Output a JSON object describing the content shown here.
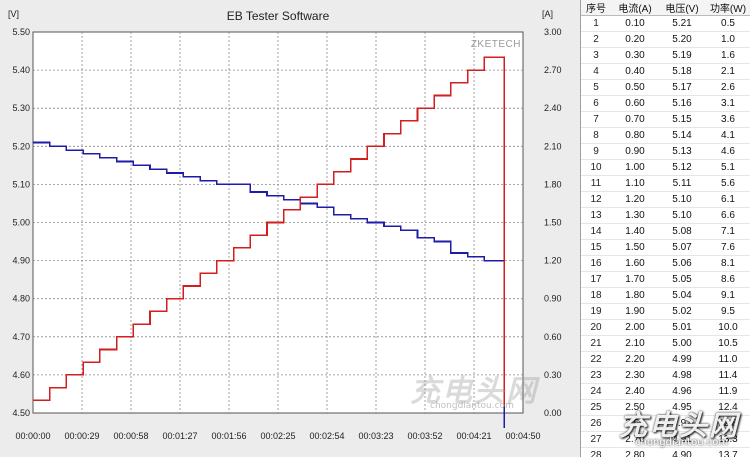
{
  "chart_data": {
    "type": "line",
    "title": "EB Tester Software",
    "left_unit": "[V]",
    "right_unit": "[A]",
    "watermark": "ZKETECH",
    "left_ticks": [
      "5.50",
      "5.40",
      "5.30",
      "5.20",
      "5.10",
      "5.00",
      "4.90",
      "4.80",
      "4.70",
      "4.60",
      "4.50"
    ],
    "right_ticks": [
      "3.00",
      "2.70",
      "2.40",
      "2.10",
      "1.80",
      "1.50",
      "1.20",
      "0.90",
      "0.60",
      "0.30",
      "0.00"
    ],
    "x_ticks": [
      "00:00:00",
      "00:00:29",
      "00:00:58",
      "00:01:27",
      "00:01:56",
      "00:02:25",
      "00:02:54",
      "00:03:23",
      "00:03:52",
      "00:04:21",
      "00:04:50"
    ],
    "ylim_left": [
      4.5,
      5.5
    ],
    "ylim_right": [
      0,
      3.0
    ],
    "xlim_seconds": [
      0,
      290
    ],
    "grid": true,
    "series": [
      {
        "axis": "left",
        "color": "#1c1ca8",
        "shape": "step",
        "values": [
          5.21,
          5.2,
          5.19,
          5.18,
          5.17,
          5.16,
          5.15,
          5.14,
          5.13,
          5.12,
          5.11,
          5.1,
          5.1,
          5.08,
          5.07,
          5.06,
          5.05,
          5.04,
          5.02,
          5.01,
          5.0,
          4.99,
          4.98,
          4.96,
          4.95,
          4.92,
          4.91,
          4.9
        ],
        "final_drop": 4.46
      },
      {
        "axis": "right",
        "color": "#d21e1e",
        "shape": "step",
        "values": [
          0.1,
          0.2,
          0.3,
          0.4,
          0.5,
          0.6,
          0.7,
          0.8,
          0.9,
          1.0,
          1.1,
          1.2,
          1.3,
          1.4,
          1.5,
          1.6,
          1.7,
          1.8,
          1.9,
          2.0,
          2.1,
          2.2,
          2.3,
          2.4,
          2.5,
          2.6,
          2.7,
          2.8
        ],
        "final_drop": 0.05
      }
    ]
  },
  "table": {
    "headers": [
      "序号",
      "电流(A)",
      "电压(V)",
      "功率(W)"
    ],
    "rows": [
      [
        "1",
        "0.10",
        "5.21",
        "0.5"
      ],
      [
        "2",
        "0.20",
        "5.20",
        "1.0"
      ],
      [
        "3",
        "0.30",
        "5.19",
        "1.6"
      ],
      [
        "4",
        "0.40",
        "5.18",
        "2.1"
      ],
      [
        "5",
        "0.50",
        "5.17",
        "2.6"
      ],
      [
        "6",
        "0.60",
        "5.16",
        "3.1"
      ],
      [
        "7",
        "0.70",
        "5.15",
        "3.6"
      ],
      [
        "8",
        "0.80",
        "5.14",
        "4.1"
      ],
      [
        "9",
        "0.90",
        "5.13",
        "4.6"
      ],
      [
        "10",
        "1.00",
        "5.12",
        "5.1"
      ],
      [
        "11",
        "1.10",
        "5.11",
        "5.6"
      ],
      [
        "12",
        "1.20",
        "5.10",
        "6.1"
      ],
      [
        "13",
        "1.30",
        "5.10",
        "6.6"
      ],
      [
        "14",
        "1.40",
        "5.08",
        "7.1"
      ],
      [
        "15",
        "1.50",
        "5.07",
        "7.6"
      ],
      [
        "16",
        "1.60",
        "5.06",
        "8.1"
      ],
      [
        "17",
        "1.70",
        "5.05",
        "8.6"
      ],
      [
        "18",
        "1.80",
        "5.04",
        "9.1"
      ],
      [
        "19",
        "1.90",
        "5.02",
        "9.5"
      ],
      [
        "20",
        "2.00",
        "5.01",
        "10.0"
      ],
      [
        "21",
        "2.10",
        "5.00",
        "10.5"
      ],
      [
        "22",
        "2.20",
        "4.99",
        "11.0"
      ],
      [
        "23",
        "2.30",
        "4.98",
        "11.4"
      ],
      [
        "24",
        "2.40",
        "4.96",
        "11.9"
      ],
      [
        "25",
        "2.50",
        "4.95",
        "12.4"
      ],
      [
        "26",
        "2.60",
        "4.92",
        "12.8"
      ],
      [
        "27",
        "2.70",
        "4.91",
        "13.3"
      ],
      [
        "28",
        "2.80",
        "4.90",
        "13.7"
      ]
    ]
  },
  "watermarks": {
    "center_text": "充电头网",
    "center_url": "chongdiantou.com",
    "corner_text": "充电头网",
    "corner_url": "chongdiantou.com"
  }
}
